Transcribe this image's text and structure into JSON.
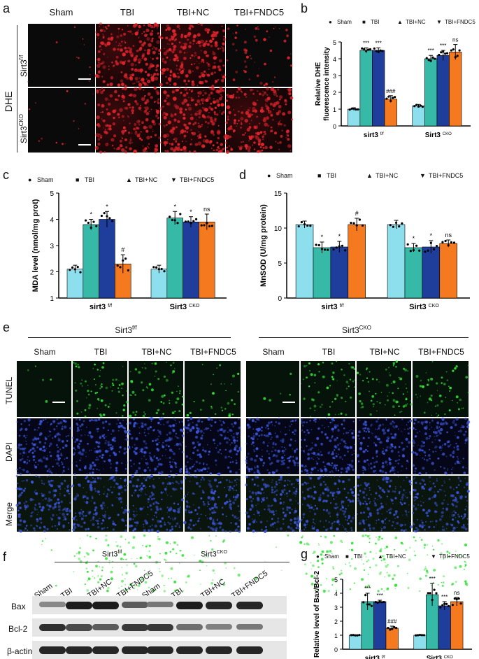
{
  "panels": {
    "a": {
      "label": "a",
      "columns": [
        "Sham",
        "TBI",
        "TBI+NC",
        "TBI+FNDC5"
      ],
      "row_group": "DHE",
      "rows": [
        {
          "base": "Sirt3",
          "sup": "f/f"
        },
        {
          "base": "Sirt3",
          "sup": "CKO"
        }
      ],
      "colors": {
        "signal": "#e0242c"
      }
    },
    "b": {
      "label": "b"
    },
    "c": {
      "label": "c"
    },
    "d": {
      "label": "d"
    },
    "e": {
      "label": "e",
      "groups": [
        {
          "base": "Sirt3",
          "sup": "f/f"
        },
        {
          "base": "Sirt3",
          "sup": "CKO"
        }
      ],
      "columns": [
        "Sham",
        "TBI",
        "TBI+NC",
        "TBI+FNDC5"
      ],
      "rows": [
        "TUNEL",
        "DAPI",
        "Merge"
      ],
      "colors": {
        "tunel": "#36e03a",
        "dapi": "#3a54d8"
      }
    },
    "f": {
      "label": "f",
      "groups": [
        {
          "base": "Sirt3",
          "sup": "f/f"
        },
        {
          "base": "Sirt3",
          "sup": "CKO"
        }
      ],
      "lanes": [
        "Sham",
        "TBI",
        "TBI+NC",
        "TBI+FNDC5",
        "Sham",
        "TBI",
        "TBI+NC",
        "TBI+FNDC5"
      ],
      "blots": [
        "Bax",
        "Bcl-2",
        "β-actin"
      ],
      "band_intensity": {
        "Bax": [
          0.35,
          0.95,
          0.95,
          0.6,
          0.45,
          0.95,
          0.9,
          0.9
        ],
        "Bcl-2": [
          0.85,
          0.7,
          0.6,
          0.8,
          0.8,
          0.5,
          0.4,
          0.45
        ],
        "β-actin": [
          0.9,
          0.9,
          0.9,
          0.9,
          0.9,
          0.9,
          0.9,
          0.9
        ]
      }
    },
    "g": {
      "label": "g"
    }
  },
  "chart_data": [
    {
      "id": "b",
      "type": "bar",
      "legend": [
        "Sham",
        "TBI",
        "TBI+NC",
        "TBI+FNDC5"
      ],
      "legend_markers": [
        "●",
        "■",
        "▲",
        "▼"
      ],
      "ylabel": [
        "Relative DHE",
        "fluorescence intensity"
      ],
      "ylim": [
        0,
        5
      ],
      "yticks": [
        "0",
        "1",
        "2",
        "3",
        "4",
        "5"
      ],
      "groups": [
        {
          "base": "sirt3",
          "sup": "f/f"
        },
        {
          "base": "Sirt3",
          "sup": "CKO"
        }
      ],
      "series": [
        {
          "values": [
            1.0,
            1.2
          ],
          "err": [
            0.08,
            0.08
          ],
          "sig": [
            "",
            ""
          ]
        },
        {
          "values": [
            4.5,
            4.0
          ],
          "err": [
            0.15,
            0.2
          ],
          "sig": [
            "***",
            "***"
          ]
        },
        {
          "values": [
            4.5,
            4.2
          ],
          "err": [
            0.15,
            0.3
          ],
          "sig": [
            "***",
            "***"
          ]
        },
        {
          "values": [
            1.6,
            4.4
          ],
          "err": [
            0.2,
            0.45
          ],
          "sig": [
            "###",
            "ns"
          ]
        }
      ],
      "colors": [
        "#8edfee",
        "#36b9a7",
        "#1f3d9b",
        "#f57a1f"
      ]
    },
    {
      "id": "c",
      "type": "bar",
      "legend": [
        "Sham",
        "TBI",
        "TBI+NC",
        "TBI+FNDC5"
      ],
      "legend_markers": [
        "●",
        "■",
        "▲",
        "▼"
      ],
      "ylabel": [
        "MDA level (nmol/mg prot)"
      ],
      "ylim": [
        1,
        5
      ],
      "yticks": [
        "1",
        "2",
        "3",
        "4",
        "5"
      ],
      "groups": [
        {
          "base": "sirt3",
          "sup": "f/f"
        },
        {
          "base": "Sirt3",
          "sup": "CKO"
        }
      ],
      "series": [
        {
          "values": [
            2.1,
            2.1
          ],
          "err": [
            0.15,
            0.15
          ],
          "sig": [
            "",
            ""
          ]
        },
        {
          "values": [
            3.8,
            4.05
          ],
          "err": [
            0.2,
            0.25
          ],
          "sig": [
            "*",
            "*"
          ]
        },
        {
          "values": [
            4.0,
            3.9
          ],
          "err": [
            0.3,
            0.2
          ],
          "sig": [
            "*",
            "*"
          ]
        },
        {
          "values": [
            2.3,
            3.9
          ],
          "err": [
            0.35,
            0.3
          ],
          "sig": [
            "#",
            "ns"
          ]
        }
      ],
      "colors": [
        "#8edfee",
        "#36b9a7",
        "#1f3d9b",
        "#f57a1f"
      ]
    },
    {
      "id": "d",
      "type": "bar",
      "legend": [
        "Sham",
        "TBI",
        "TBI+NC",
        "TBI+FNDC5"
      ],
      "legend_markers": [
        "●",
        "■",
        "▲",
        "▼"
      ],
      "ylabel": [
        "MnSOD (U/mg protein)"
      ],
      "ylim": [
        0,
        15
      ],
      "yticks": [
        "0",
        "5",
        "10",
        "15"
      ],
      "groups": [
        {
          "base": "sirt3",
          "sup": "f/f"
        },
        {
          "base": "Sirt3",
          "sup": "CKO"
        }
      ],
      "series": [
        {
          "values": [
            10.5,
            10.5
          ],
          "err": [
            0.5,
            0.6
          ],
          "sig": [
            "",
            ""
          ]
        },
        {
          "values": [
            7.2,
            7.2
          ],
          "err": [
            0.8,
            0.6
          ],
          "sig": [
            "*",
            "*"
          ]
        },
        {
          "values": [
            7.3,
            7.3
          ],
          "err": [
            0.8,
            0.9
          ],
          "sig": [
            "*",
            "*"
          ]
        },
        {
          "values": [
            10.5,
            7.8
          ],
          "err": [
            0.9,
            0.5
          ],
          "sig": [
            "#",
            "ns"
          ]
        }
      ],
      "colors": [
        "#8edfee",
        "#36b9a7",
        "#1f3d9b",
        "#f57a1f"
      ]
    },
    {
      "id": "g",
      "type": "bar",
      "legend": [
        "Sham",
        "TBI",
        "TBI+NC",
        "TBI+FNDC5"
      ],
      "legend_markers": [
        "●",
        "■",
        "▲",
        "▼"
      ],
      "ylabel": [
        "Relative level of Bax/Bcl-2"
      ],
      "ylim": [
        0,
        5
      ],
      "yticks": [
        "0",
        "1",
        "2",
        "3",
        "4",
        "5"
      ],
      "groups": [
        {
          "base": "sirt3",
          "sup": "f/f"
        },
        {
          "base": "Sirt3",
          "sup": "CKO"
        }
      ],
      "series": [
        {
          "values": [
            1.0,
            1.0
          ],
          "err": [
            0.03,
            0.03
          ],
          "sig": [
            "",
            ""
          ]
        },
        {
          "values": [
            3.4,
            3.9
          ],
          "err": [
            0.6,
            0.8
          ],
          "sig": [
            "***",
            "***"
          ]
        },
        {
          "values": [
            3.4,
            3.1
          ],
          "err": [
            0.1,
            0.3
          ],
          "sig": [
            "***",
            "***"
          ]
        },
        {
          "values": [
            1.5,
            3.4
          ],
          "err": [
            0.15,
            0.3
          ],
          "sig": [
            "###",
            "ns"
          ]
        }
      ],
      "colors": [
        "#8edfee",
        "#36b9a7",
        "#1f3d9b",
        "#f57a1f"
      ]
    }
  ]
}
